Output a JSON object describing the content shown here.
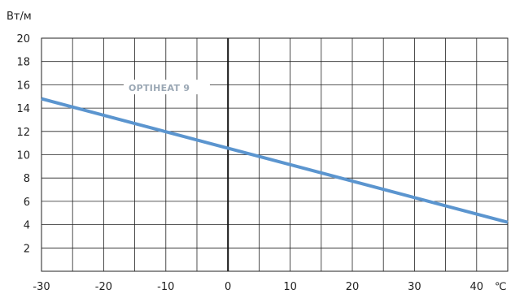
{
  "chart_data": {
    "type": "line",
    "title": "",
    "xlabel": "",
    "ylabel": "",
    "y_unit": "Вт/м",
    "x_unit": "℃",
    "xlim": [
      -30,
      45
    ],
    "ylim": [
      0,
      20
    ],
    "x_ticks": [
      -30,
      -20,
      -10,
      0,
      10,
      20,
      30,
      40
    ],
    "y_ticks": [
      2,
      4,
      6,
      8,
      10,
      12,
      14,
      16,
      18,
      20
    ],
    "grid": true,
    "series": [
      {
        "name": "OPTIHEAT 9",
        "x": [
          -30,
          45
        ],
        "y": [
          14.8,
          4.2
        ],
        "color": "#5b95cf"
      }
    ]
  }
}
